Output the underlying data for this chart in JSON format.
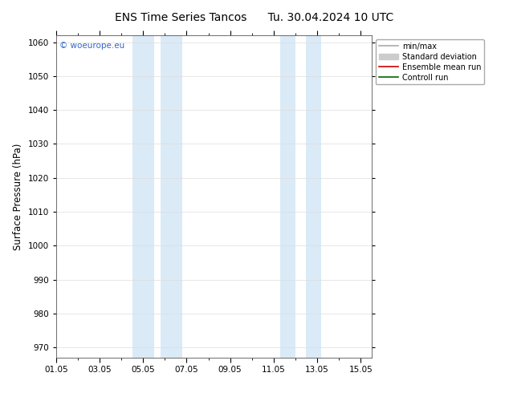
{
  "title": "ENS Time Series Tancos",
  "title_date": "Tu. 30.04.2024 10 UTC",
  "ylabel": "Surface Pressure (hPa)",
  "ylim": [
    967,
    1062
  ],
  "yticks": [
    970,
    980,
    990,
    1000,
    1010,
    1020,
    1030,
    1040,
    1050,
    1060
  ],
  "xtick_labels": [
    "01.05",
    "03.05",
    "05.05",
    "07.05",
    "09.05",
    "11.05",
    "13.05",
    "15.05"
  ],
  "xtick_positions": [
    0,
    2,
    4,
    6,
    8,
    10,
    12,
    14
  ],
  "xlim": [
    0,
    14.5
  ],
  "shaded_bands": [
    {
      "x_start": 3.5,
      "x_end": 4.5,
      "color": "#daeaf7"
    },
    {
      "x_start": 4.8,
      "x_end": 5.8,
      "color": "#daeaf7"
    },
    {
      "x_start": 10.3,
      "x_end": 11.0,
      "color": "#daeaf7"
    },
    {
      "x_start": 11.5,
      "x_end": 12.2,
      "color": "#daeaf7"
    }
  ],
  "watermark": "© woeurope.eu",
  "watermark_color": "#3366cc",
  "legend_entries": [
    {
      "label": "min/max",
      "color": "#aaaaaa",
      "lw": 1.2,
      "type": "line"
    },
    {
      "label": "Standard deviation",
      "color": "#cccccc",
      "lw": 8,
      "type": "patch"
    },
    {
      "label": "Ensemble mean run",
      "color": "#cc0000",
      "lw": 1.2,
      "type": "line"
    },
    {
      "label": "Controll run",
      "color": "#006600",
      "lw": 1.2,
      "type": "line"
    }
  ],
  "bg_color": "#ffffff",
  "plot_bg_color": "#ffffff",
  "grid_color": "#dddddd",
  "title_fontsize": 10,
  "tick_fontsize": 7.5,
  "ylabel_fontsize": 8.5,
  "legend_fontsize": 7
}
